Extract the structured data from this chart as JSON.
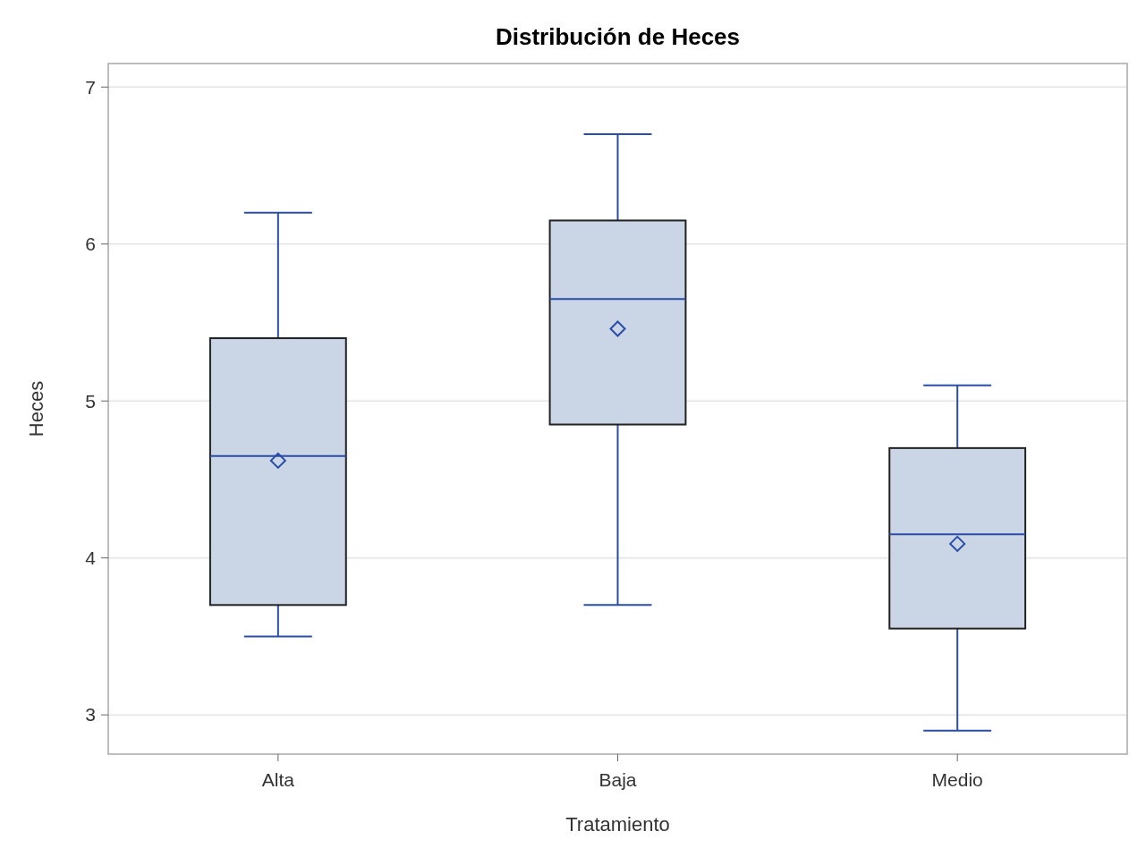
{
  "chart_data": {
    "type": "box",
    "title": "Distribución de Heces",
    "xlabel": "Tratamiento",
    "ylabel": "Heces",
    "categories": [
      "Alta",
      "Baja",
      "Medio"
    ],
    "series": [
      {
        "color": "#cad5e5",
        "boxes": [
          {
            "low": 3.5,
            "q1": 3.7,
            "median": 4.65,
            "q3": 5.4,
            "high": 6.2,
            "mean": 4.62
          },
          {
            "low": 3.7,
            "q1": 4.85,
            "median": 5.65,
            "q3": 6.15,
            "high": 6.7,
            "mean": 5.46
          },
          {
            "low": 2.9,
            "q1": 3.55,
            "median": 4.15,
            "q3": 4.7,
            "high": 5.1,
            "mean": 4.09
          }
        ]
      }
    ],
    "legend": false,
    "ylim": [
      2.75,
      7.15
    ],
    "yticks": [
      3,
      4,
      5,
      6,
      7
    ],
    "grid": "y",
    "marker": "diamond"
  }
}
